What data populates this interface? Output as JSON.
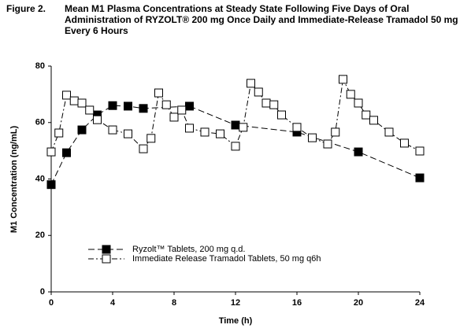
{
  "chart_data": {
    "type": "line",
    "figure_label": "Figure 2.",
    "title": [
      "Mean M1 Plasma Concentrations at Steady State Following Five Days of Oral",
      "Administration of  RYZOLT® 200 mg Once Daily and Immediate-Release Tramadol 50 mg",
      "Every 6 Hours"
    ],
    "x_label": "Time (h)",
    "y_label": "M1 Concentration (ng/mL)",
    "xlim": [
      0,
      24
    ],
    "xticks": [
      0,
      4,
      8,
      12,
      16,
      20,
      24
    ],
    "ylim": [
      0,
      80
    ],
    "yticks": [
      0,
      20,
      40,
      60,
      80
    ],
    "grid": false,
    "legend": "lower left",
    "series": [
      {
        "name": "Ryzolt™ Tablets, 200 mg q.d.",
        "color": "#000000",
        "marker_fill": "#000000",
        "x": [
          0,
          1,
          2,
          3,
          4,
          5,
          6,
          9,
          12,
          16,
          20,
          24
        ],
        "values": [
          38,
          49.3,
          57.4,
          62.7,
          66,
          65.8,
          65,
          65.8,
          59.1,
          56.6,
          49.6,
          40.4
        ]
      },
      {
        "name": "Immediate Release Tramadol Tablets, 50 mg q6h",
        "color": "#000000",
        "marker_fill": "#ffffff",
        "x": [
          0,
          0.5,
          1,
          1.5,
          2,
          2.5,
          3,
          4,
          5,
          6,
          6.5,
          7,
          7.5,
          8,
          8.5,
          9,
          10,
          11,
          12,
          12.5,
          13,
          13.5,
          14,
          14.5,
          15,
          16,
          17,
          18,
          18.5,
          19,
          19.5,
          20,
          20.5,
          21,
          22,
          23,
          24
        ],
        "values": [
          49.6,
          56.3,
          69.7,
          67.7,
          66.9,
          64.4,
          61,
          57.4,
          56,
          50.7,
          54.4,
          70.5,
          66.3,
          61.9,
          64.4,
          58,
          56.6,
          56,
          51.6,
          58.3,
          73.9,
          70.8,
          66.9,
          66.3,
          62.7,
          58.3,
          54.6,
          52.4,
          56.6,
          75.3,
          70,
          66.9,
          62.7,
          60.8,
          56.6,
          52.7,
          49.9
        ]
      }
    ]
  }
}
